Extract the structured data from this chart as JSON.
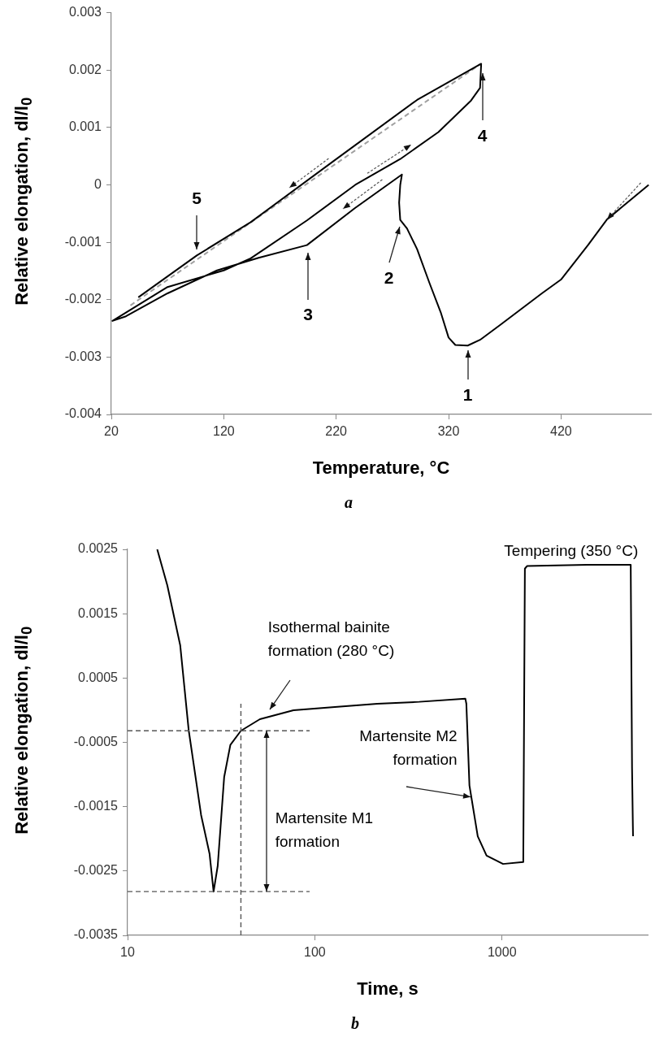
{
  "chart_data": [
    {
      "type": "line",
      "title": "a",
      "xlabel": "Temperature, °C",
      "ylabel": "Relative elongation, dl/l$_{0}$",
      "xlim": [
        20,
        500
      ],
      "xticks": [
        20,
        120,
        220,
        320,
        420
      ],
      "ylim": [
        -0.004,
        0.003
      ],
      "yticks": [
        -0.004,
        -0.003,
        -0.002,
        -0.001,
        0,
        0.001,
        0.002,
        0.003
      ],
      "grid": false,
      "legend": false,
      "series": [
        {
          "color": "#000000",
          "x": [
            498,
            461,
            444,
            420,
            403,
            366,
            348,
            337,
            326,
            320,
            313,
            303,
            292,
            283,
            277,
            276,
            277,
            278.5,
            237,
            194,
            151,
            114,
            70,
            33,
            21,
            70,
            120,
            144,
            194,
            237,
            277,
            311,
            340,
            348,
            349,
            292,
            218,
            144,
            96,
            44
          ],
          "values": [
            0,
            -0.0006,
            -0.00105,
            -0.00165,
            -0.00189,
            -0.00244,
            -0.0027,
            -0.0028,
            -0.00279,
            -0.00266,
            -0.00222,
            -0.00171,
            -0.00112,
            -0.00076,
            -0.00061,
            -0.00031,
            0,
            0.00018,
            -0.0004,
            -0.00105,
            -0.00127,
            -0.00149,
            -0.00189,
            -0.00229,
            -0.00237,
            -0.00178,
            -0.00149,
            -0.00128,
            -0.00062,
            0,
            0.00045,
            0.00092,
            0.00147,
            0.00169,
            0.00211,
            0.00148,
            0.00042,
            -0.00065,
            -0.00123,
            -0.00196
          ]
        },
        {
          "color": "#a0a0a0",
          "line_style": "dashed",
          "x": [
            37,
            348
          ],
          "values": [
            -0.0021,
            0.0021
          ]
        }
      ],
      "annotations": [
        {
          "text": "1",
          "x": 337,
          "y": -0.0028
        },
        {
          "text": "2",
          "x": 277,
          "y": -0.00068
        },
        {
          "text": "3",
          "x": 195,
          "y": -0.00112
        },
        {
          "text": "4",
          "x": 350,
          "y": 0.002
        },
        {
          "text": "5",
          "x": 96,
          "y": -0.00118
        }
      ]
    },
    {
      "type": "line",
      "title": "b",
      "xlabel": "Time, s",
      "ylabel": "Relative elongation, dl/l$_{0}$",
      "log": "x",
      "xlim": [
        10,
        6000
      ],
      "xticks": [
        10,
        100,
        1000
      ],
      "ylim": [
        -0.0035,
        0.0025
      ],
      "yticks": [
        -0.0035,
        -0.0025,
        -0.0015,
        -0.0005,
        0.0005,
        0.0015,
        0.0025
      ],
      "grid": false,
      "legend": false,
      "series": [
        {
          "color": "#000000",
          "x": [
            14.4,
            16.3,
            19.1,
            21.2,
            24.7,
            27.4,
            28.8,
            30.3,
            32.8,
            35.4,
            40.3,
            50.9,
            76.9,
            128,
            216,
            361,
            637,
            645,
            670,
            742,
            827,
            1013,
            1299,
            1325,
            1360,
            2850,
            4870,
            4950,
            5010
          ],
          "values": [
            0.0025,
            0.00194,
            0.00101,
            -0.00031,
            -0.00163,
            -0.00223,
            -0.00282,
            -0.00242,
            -0.00104,
            -0.00054,
            -0.00032,
            -0.00014,
            0,
            5e-05,
            0.0001,
            0.00013,
            0.00018,
            0.0001,
            -0.00117,
            -0.00196,
            -0.00226,
            -0.00239,
            -0.00236,
            0.0022,
            0.00224,
            0.00226,
            0.00226,
            -0.0009,
            -0.00196
          ]
        }
      ],
      "ref_lines": [
        {
          "axis": "y",
          "value": -0.00032,
          "color": "#555555",
          "line_style": "dashed"
        },
        {
          "axis": "y",
          "value": -0.00282,
          "color": "#555555",
          "line_style": "dashed"
        },
        {
          "axis": "x",
          "value": 40.3,
          "color": "#555555",
          "line_style": "dashed"
        }
      ],
      "annotations": [
        "Isothermal bainite\nformation (280 °C)",
        {
          "text": "Martensite M2\nformation",
          "x": 690,
          "y": -0.00135
        },
        "Martensite M1\nformation",
        {
          "text": "Tempering (350 °C)",
          "x": 2340,
          "y": 0.00226
        }
      ]
    }
  ]
}
